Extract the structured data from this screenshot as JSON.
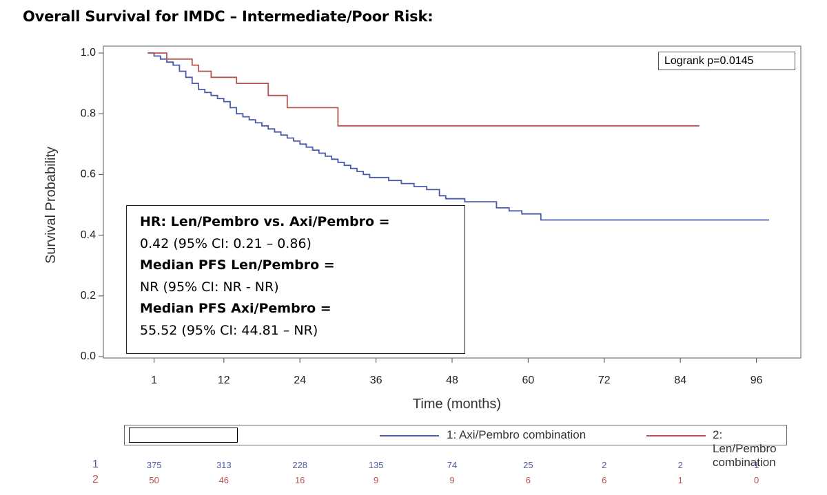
{
  "title": "Overall Survival for IMDC – Intermediate/Poor Risk:",
  "chart_data": {
    "type": "line",
    "subtype": "kaplan-meier",
    "xlabel": "Time (months)",
    "ylabel": "Survival Probability",
    "xlim": [
      -7,
      103
    ],
    "ylim": [
      0.0,
      1.0
    ],
    "x_ticks": [
      1,
      12,
      24,
      36,
      48,
      60,
      72,
      84,
      96
    ],
    "y_ticks": [
      0.0,
      0.2,
      0.4,
      0.6,
      0.8,
      1.0
    ],
    "y_tick_labels": [
      "0.0",
      "0.2",
      "0.4",
      "0.6",
      "0.8",
      "1.0"
    ],
    "series": [
      {
        "name": "1: Axi/Pembro combination",
        "color": "#4a5aa8",
        "points": [
          [
            0,
            1.0
          ],
          [
            1,
            0.99
          ],
          [
            2,
            0.98
          ],
          [
            3,
            0.97
          ],
          [
            4,
            0.96
          ],
          [
            5,
            0.94
          ],
          [
            6,
            0.92
          ],
          [
            7,
            0.9
          ],
          [
            8,
            0.88
          ],
          [
            9,
            0.87
          ],
          [
            10,
            0.86
          ],
          [
            11,
            0.85
          ],
          [
            12,
            0.84
          ],
          [
            13,
            0.82
          ],
          [
            14,
            0.8
          ],
          [
            15,
            0.79
          ],
          [
            16,
            0.78
          ],
          [
            17,
            0.77
          ],
          [
            18,
            0.76
          ],
          [
            19,
            0.75
          ],
          [
            20,
            0.74
          ],
          [
            21,
            0.73
          ],
          [
            22,
            0.72
          ],
          [
            23,
            0.71
          ],
          [
            24,
            0.7
          ],
          [
            25,
            0.69
          ],
          [
            26,
            0.68
          ],
          [
            27,
            0.67
          ],
          [
            28,
            0.66
          ],
          [
            29,
            0.65
          ],
          [
            30,
            0.64
          ],
          [
            31,
            0.63
          ],
          [
            32,
            0.62
          ],
          [
            33,
            0.61
          ],
          [
            34,
            0.6
          ],
          [
            35,
            0.59
          ],
          [
            36,
            0.59
          ],
          [
            38,
            0.58
          ],
          [
            40,
            0.57
          ],
          [
            42,
            0.56
          ],
          [
            44,
            0.55
          ],
          [
            46,
            0.53
          ],
          [
            47,
            0.52
          ],
          [
            48,
            0.52
          ],
          [
            50,
            0.51
          ],
          [
            52,
            0.51
          ],
          [
            55,
            0.49
          ],
          [
            57,
            0.48
          ],
          [
            59,
            0.47
          ],
          [
            61,
            0.47
          ],
          [
            62,
            0.45
          ],
          [
            70,
            0.45
          ],
          [
            80,
            0.45
          ],
          [
            90,
            0.45
          ],
          [
            98,
            0.45
          ]
        ]
      },
      {
        "name": "2: Len/Pembro combination",
        "color": "#b5544e",
        "points": [
          [
            0,
            1.0
          ],
          [
            3,
            1.0
          ],
          [
            3,
            0.98
          ],
          [
            7,
            0.98
          ],
          [
            7,
            0.96
          ],
          [
            8,
            0.96
          ],
          [
            8,
            0.94
          ],
          [
            10,
            0.94
          ],
          [
            10,
            0.92
          ],
          [
            14,
            0.92
          ],
          [
            14,
            0.9
          ],
          [
            19,
            0.9
          ],
          [
            19,
            0.86
          ],
          [
            22,
            0.86
          ],
          [
            22,
            0.82
          ],
          [
            30,
            0.82
          ],
          [
            30,
            0.76
          ],
          [
            87,
            0.76
          ]
        ]
      }
    ],
    "annotations": {
      "logrank": "Logrank p=0.0145",
      "hr_lines": [
        {
          "text": "HR: Len/Pembro vs. Axi/Pembro =",
          "bold": true
        },
        {
          "text": "0.42 (95% CI: 0.21 – 0.86)",
          "bold": false
        },
        {
          "text": "Median PFS Len/Pembro =",
          "bold": true
        },
        {
          "text": "NR (95% CI: NR - NR)",
          "bold": false
        },
        {
          "text": "Median PFS Axi/Pembro =",
          "bold": true
        },
        {
          "text": "55.52 (95% CI: 44.81 – NR)",
          "bold": false
        }
      ]
    },
    "legend": {
      "placement": "bottom",
      "items": [
        "1: Axi/Pembro combination",
        "2: Len/Pembro combination"
      ]
    },
    "risk_table": {
      "rows": [
        {
          "id": "1",
          "color": "#4a5aa8",
          "counts": [
            "375",
            "313",
            "228",
            "135",
            "74",
            "25",
            "2",
            "2",
            "1"
          ]
        },
        {
          "id": "2",
          "color": "#b5544e",
          "counts": [
            "50",
            "46",
            "16",
            "9",
            "9",
            "6",
            "6",
            "1",
            "0"
          ]
        }
      ]
    },
    "grid": false
  }
}
